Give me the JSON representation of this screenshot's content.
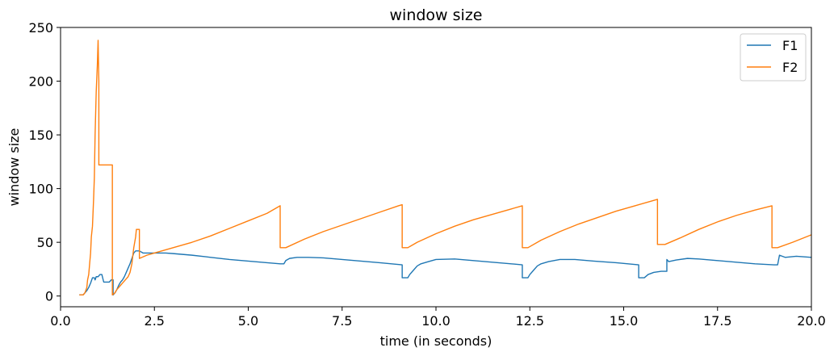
{
  "chart_data": {
    "type": "line",
    "title": "window size",
    "xlabel": "time (in seconds)",
    "ylabel": "window size",
    "xlim": [
      0,
      20
    ],
    "ylim": [
      -10,
      250
    ],
    "xticks": [
      0.0,
      2.5,
      5.0,
      7.5,
      10.0,
      12.5,
      15.0,
      17.5,
      20.0
    ],
    "xtick_labels": [
      "0.0",
      "2.5",
      "5.0",
      "7.5",
      "10.0",
      "12.5",
      "15.0",
      "17.5",
      "20.0"
    ],
    "yticks": [
      0,
      50,
      100,
      150,
      200,
      250
    ],
    "ytick_labels": [
      "0",
      "50",
      "100",
      "150",
      "200",
      "250"
    ],
    "grid": false,
    "legend_position": "top-right",
    "series": [
      {
        "name": "F1",
        "color": "#1f77b4",
        "points": [
          [
            0.5,
            1
          ],
          [
            0.6,
            1
          ],
          [
            0.65,
            3
          ],
          [
            0.7,
            5
          ],
          [
            0.75,
            8
          ],
          [
            0.8,
            12
          ],
          [
            0.85,
            17
          ],
          [
            0.9,
            17
          ],
          [
            0.92,
            15
          ],
          [
            0.95,
            18
          ],
          [
            1.0,
            18
          ],
          [
            1.05,
            20
          ],
          [
            1.1,
            20
          ],
          [
            1.15,
            13
          ],
          [
            1.3,
            13
          ],
          [
            1.35,
            15
          ],
          [
            1.4,
            15
          ],
          [
            1.4,
            1
          ],
          [
            1.45,
            3
          ],
          [
            1.5,
            6
          ],
          [
            1.55,
            10
          ],
          [
            1.6,
            13
          ],
          [
            1.65,
            15
          ],
          [
            1.7,
            18
          ],
          [
            1.75,
            22
          ],
          [
            1.8,
            26
          ],
          [
            1.85,
            30
          ],
          [
            1.9,
            35
          ],
          [
            1.95,
            40
          ],
          [
            2.0,
            42
          ],
          [
            2.05,
            42
          ],
          [
            2.1,
            42
          ],
          [
            2.2,
            40
          ],
          [
            2.5,
            40
          ],
          [
            2.8,
            40
          ],
          [
            3.0,
            39.5
          ],
          [
            3.5,
            38
          ],
          [
            4.0,
            36
          ],
          [
            4.5,
            34
          ],
          [
            5.0,
            32.5
          ],
          [
            5.5,
            31
          ],
          [
            5.85,
            30
          ],
          [
            5.95,
            30
          ],
          [
            6.0,
            33
          ],
          [
            6.1,
            35
          ],
          [
            6.3,
            36
          ],
          [
            6.6,
            36
          ],
          [
            7.0,
            35.5
          ],
          [
            7.5,
            34
          ],
          [
            8.0,
            32.5
          ],
          [
            8.5,
            31
          ],
          [
            9.1,
            29
          ],
          [
            9.1,
            17
          ],
          [
            9.25,
            17
          ],
          [
            9.3,
            20
          ],
          [
            9.4,
            24
          ],
          [
            9.5,
            28
          ],
          [
            9.6,
            30
          ],
          [
            9.8,
            32
          ],
          [
            10.0,
            34
          ],
          [
            10.5,
            34.5
          ],
          [
            11.0,
            33
          ],
          [
            11.5,
            31.5
          ],
          [
            12.0,
            30
          ],
          [
            12.3,
            29
          ],
          [
            12.3,
            17
          ],
          [
            12.45,
            17
          ],
          [
            12.5,
            20
          ],
          [
            12.6,
            24
          ],
          [
            12.7,
            28
          ],
          [
            12.8,
            30
          ],
          [
            13.0,
            32
          ],
          [
            13.3,
            34
          ],
          [
            13.7,
            34
          ],
          [
            14.2,
            32.5
          ],
          [
            14.8,
            31
          ],
          [
            15.4,
            29
          ],
          [
            15.4,
            17
          ],
          [
            15.55,
            17
          ],
          [
            15.65,
            20
          ],
          [
            15.8,
            22
          ],
          [
            16.0,
            23
          ],
          [
            16.15,
            23
          ],
          [
            16.15,
            34
          ],
          [
            16.2,
            32
          ],
          [
            16.4,
            33.5
          ],
          [
            16.7,
            35
          ],
          [
            17.0,
            34.5
          ],
          [
            17.5,
            33
          ],
          [
            18.0,
            31.5
          ],
          [
            18.5,
            30
          ],
          [
            19.0,
            29
          ],
          [
            19.1,
            29
          ],
          [
            19.15,
            38
          ],
          [
            19.3,
            36
          ],
          [
            19.6,
            37
          ],
          [
            20.0,
            36
          ]
        ]
      },
      {
        "name": "F2",
        "color": "#ff7f0e",
        "points": [
          [
            0.5,
            1
          ],
          [
            0.6,
            1
          ],
          [
            0.65,
            3
          ],
          [
            0.7,
            8
          ],
          [
            0.72,
            15
          ],
          [
            0.75,
            20
          ],
          [
            0.78,
            32
          ],
          [
            0.8,
            40
          ],
          [
            0.82,
            55
          ],
          [
            0.85,
            65
          ],
          [
            0.88,
            90
          ],
          [
            0.9,
            110
          ],
          [
            0.92,
            150
          ],
          [
            0.95,
            190
          ],
          [
            0.98,
            215
          ],
          [
            1.0,
            238
          ],
          [
            1.02,
            200
          ],
          [
            1.02,
            122
          ],
          [
            1.1,
            122
          ],
          [
            1.2,
            122
          ],
          [
            1.38,
            122
          ],
          [
            1.38,
            1
          ],
          [
            1.45,
            3
          ],
          [
            1.5,
            6
          ],
          [
            1.55,
            8
          ],
          [
            1.6,
            10
          ],
          [
            1.65,
            12
          ],
          [
            1.7,
            14
          ],
          [
            1.75,
            16
          ],
          [
            1.8,
            18
          ],
          [
            1.85,
            22
          ],
          [
            1.9,
            30
          ],
          [
            1.95,
            45
          ],
          [
            2.0,
            55
          ],
          [
            2.02,
            62
          ],
          [
            2.1,
            62
          ],
          [
            2.1,
            35
          ],
          [
            2.3,
            38
          ],
          [
            2.5,
            40
          ],
          [
            3.0,
            45
          ],
          [
            3.5,
            50
          ],
          [
            4.0,
            56
          ],
          [
            4.5,
            63
          ],
          [
            5.0,
            70
          ],
          [
            5.5,
            77
          ],
          [
            5.85,
            84
          ],
          [
            5.85,
            45
          ],
          [
            6.0,
            45
          ],
          [
            6.5,
            53
          ],
          [
            7.0,
            60
          ],
          [
            7.5,
            66
          ],
          [
            8.0,
            72
          ],
          [
            8.5,
            78
          ],
          [
            9.0,
            84
          ],
          [
            9.1,
            85
          ],
          [
            9.1,
            45
          ],
          [
            9.25,
            45
          ],
          [
            9.5,
            50
          ],
          [
            10.0,
            58
          ],
          [
            10.5,
            65
          ],
          [
            11.0,
            71
          ],
          [
            11.5,
            76
          ],
          [
            12.0,
            81
          ],
          [
            12.3,
            84
          ],
          [
            12.3,
            45
          ],
          [
            12.45,
            45
          ],
          [
            12.8,
            52
          ],
          [
            13.3,
            60
          ],
          [
            13.8,
            67
          ],
          [
            14.3,
            73
          ],
          [
            14.8,
            79
          ],
          [
            15.3,
            84
          ],
          [
            15.9,
            90
          ],
          [
            15.9,
            48
          ],
          [
            16.1,
            48
          ],
          [
            16.5,
            54
          ],
          [
            17.0,
            62
          ],
          [
            17.5,
            69
          ],
          [
            18.0,
            75
          ],
          [
            18.5,
            80
          ],
          [
            18.95,
            84
          ],
          [
            18.95,
            45
          ],
          [
            19.1,
            45
          ],
          [
            19.5,
            50
          ],
          [
            20.0,
            57
          ]
        ]
      }
    ]
  }
}
